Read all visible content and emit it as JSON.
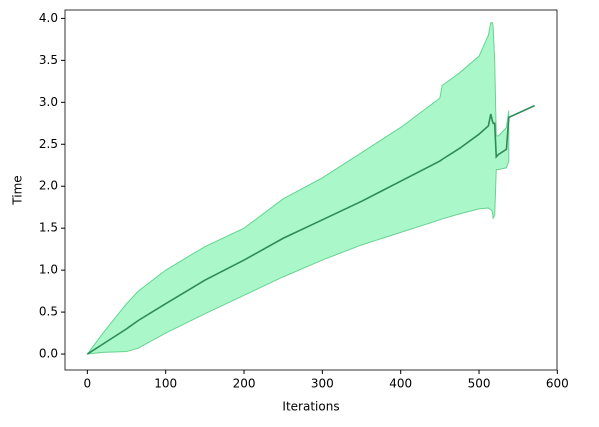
{
  "chart_data": {
    "type": "line",
    "xlabel": "Iterations",
    "ylabel": "Time",
    "x": [
      0,
      20,
      50,
      65,
      100,
      150,
      200,
      250,
      300,
      350,
      400,
      450,
      453,
      475,
      500,
      512,
      515,
      517,
      518,
      520,
      522,
      525,
      535,
      538,
      571
    ],
    "series": [
      {
        "color": "#2e8b57",
        "values": [
          0,
          0.12,
          0.3,
          0.4,
          0.6,
          0.88,
          1.12,
          1.38,
          1.6,
          1.82,
          2.06,
          2.3,
          2.32,
          2.45,
          2.62,
          2.72,
          2.86,
          2.78,
          2.75,
          2.75,
          2.35,
          2.38,
          2.44,
          2.82,
          2.96
        ]
      }
    ],
    "band": {
      "color": "#aaf7c9",
      "edge": "#66d391",
      "upper": [
        0,
        0.25,
        0.6,
        0.75,
        1.0,
        1.28,
        1.5,
        1.85,
        2.1,
        2.4,
        2.7,
        3.05,
        3.2,
        3.35,
        3.55,
        3.8,
        3.95,
        3.95,
        3.9,
        3.5,
        2.6,
        2.6,
        2.7,
        2.9,
        null
      ],
      "lower": [
        0,
        0.02,
        0.03,
        0.07,
        0.25,
        0.48,
        0.7,
        0.92,
        1.12,
        1.3,
        1.45,
        1.6,
        1.61,
        1.67,
        1.73,
        1.74,
        1.72,
        1.7,
        1.62,
        1.65,
        2.2,
        2.2,
        2.22,
        2.3,
        null
      ]
    },
    "xlim": [
      -28.55,
      599.55
    ],
    "xticks": [
      0,
      100,
      200,
      300,
      400,
      500,
      600
    ],
    "ylim": [
      -0.19,
      4.1
    ],
    "yticks": [
      {
        "value": 0,
        "label": "0.0"
      },
      {
        "value": 0.5,
        "label": "0.5"
      },
      {
        "value": 1,
        "label": "1.0"
      },
      {
        "value": 1.5,
        "label": "1.5"
      },
      {
        "value": 2,
        "label": "2.0"
      },
      {
        "value": 2.5,
        "label": "2.5"
      },
      {
        "value": 3,
        "label": "3.0"
      },
      {
        "value": 3.5,
        "label": "3.5"
      },
      {
        "value": 4,
        "label": "4.0"
      }
    ]
  }
}
